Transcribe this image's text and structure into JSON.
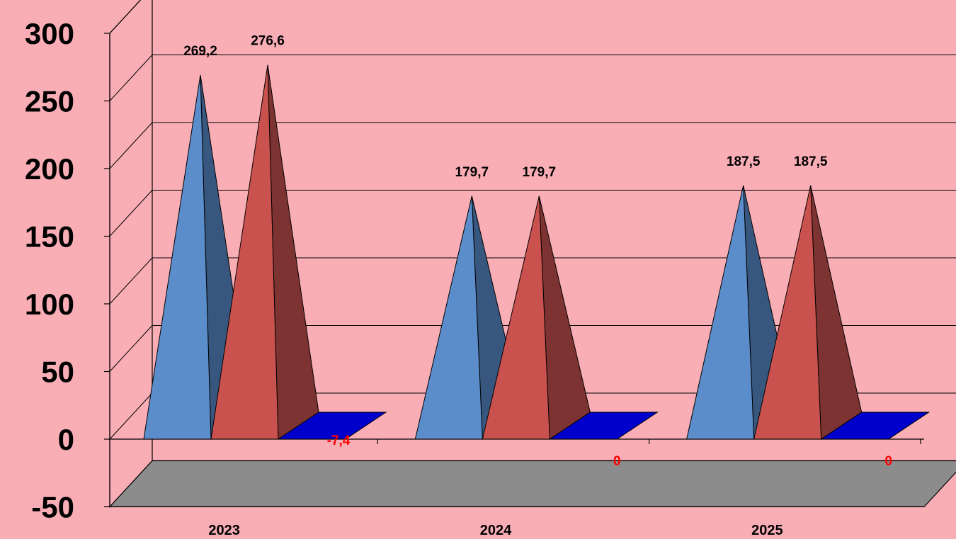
{
  "chart_data": {
    "type": "bar",
    "style": "3d-pyramid",
    "title": "",
    "xlabel": "",
    "ylabel": "",
    "categories": [
      "2023",
      "2024",
      "2025"
    ],
    "ylim": [
      -50,
      300
    ],
    "yticks": [
      "300",
      "250",
      "200",
      "150",
      "100",
      "50",
      "0",
      "-50"
    ],
    "grid": true,
    "legend": "none",
    "series": [
      {
        "values": [
          269.2,
          179.7,
          187.5
        ],
        "labels": [
          "269,2",
          "179,7",
          "187,5"
        ],
        "color": "#5B8DCB",
        "label_color": "#000000"
      },
      {
        "values": [
          276.6,
          179.7,
          187.5
        ],
        "labels": [
          "276,6",
          "179,7",
          "187,5"
        ],
        "color": "#C9524F",
        "label_color": "#000000"
      },
      {
        "values": [
          -7.4,
          0,
          0
        ],
        "labels": [
          "-7,4",
          "0",
          "0"
        ],
        "color": "#0000CC",
        "label_color": "#FF0000"
      }
    ],
    "colors": {
      "background": "#F9AEB6",
      "floor": "#8C8C8C",
      "gridline": "#000000"
    }
  }
}
